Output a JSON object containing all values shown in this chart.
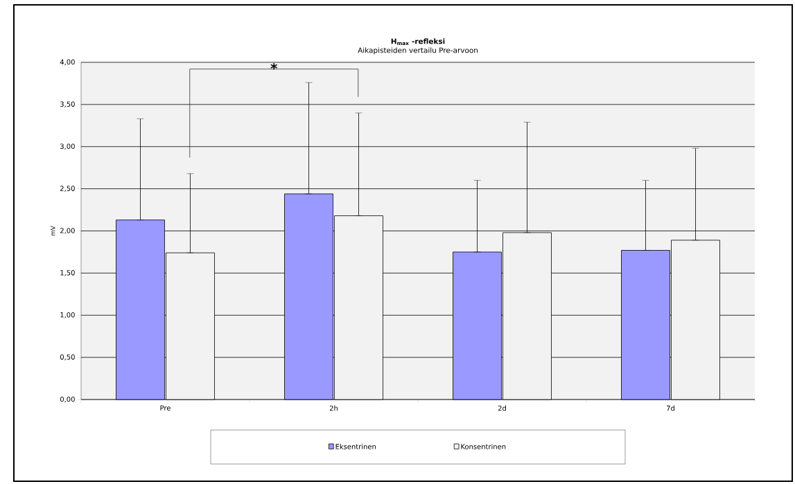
{
  "chart_data": {
    "type": "bar",
    "title": "H$_{max}$ -refleksi",
    "subtitle": "Aikapisteiden vertailu Pre-arvoon",
    "ylabel": "mV",
    "categories": [
      "Pre",
      "2h",
      "2d",
      "7d"
    ],
    "series": [
      {
        "name": "Eksentrinen",
        "color": "#9999ff",
        "values": [
          2.13,
          2.44,
          1.75,
          1.77
        ],
        "errors": [
          [
            2.13,
            3.33
          ],
          [
            2.44,
            3.76
          ],
          [
            1.75,
            2.6
          ],
          [
            1.77,
            2.6
          ]
        ]
      },
      {
        "name": "Konsentrinen",
        "color": "#f2f2f2",
        "values": [
          1.74,
          2.18,
          1.98,
          1.89
        ],
        "errors": [
          [
            1.74,
            2.68
          ],
          [
            2.18,
            3.4
          ],
          [
            1.98,
            3.29
          ],
          [
            1.89,
            2.98
          ]
        ]
      }
    ],
    "ylim": [
      0,
      4
    ],
    "yticks": [
      {
        "value": 0,
        "label": "0,00"
      },
      {
        "value": 0.5,
        "label": "0,50"
      },
      {
        "value": 1,
        "label": "1,00"
      },
      {
        "value": 1.5,
        "label": "1,50"
      },
      {
        "value": 2,
        "label": "2,00"
      },
      {
        "value": 2.5,
        "label": "2,50"
      },
      {
        "value": 3,
        "label": "3,00"
      },
      {
        "value": 3.5,
        "label": "3,50"
      },
      {
        "value": 4,
        "label": "4,00"
      }
    ],
    "grid": "y",
    "legend": "bottom",
    "annotations": [
      "*"
    ]
  }
}
